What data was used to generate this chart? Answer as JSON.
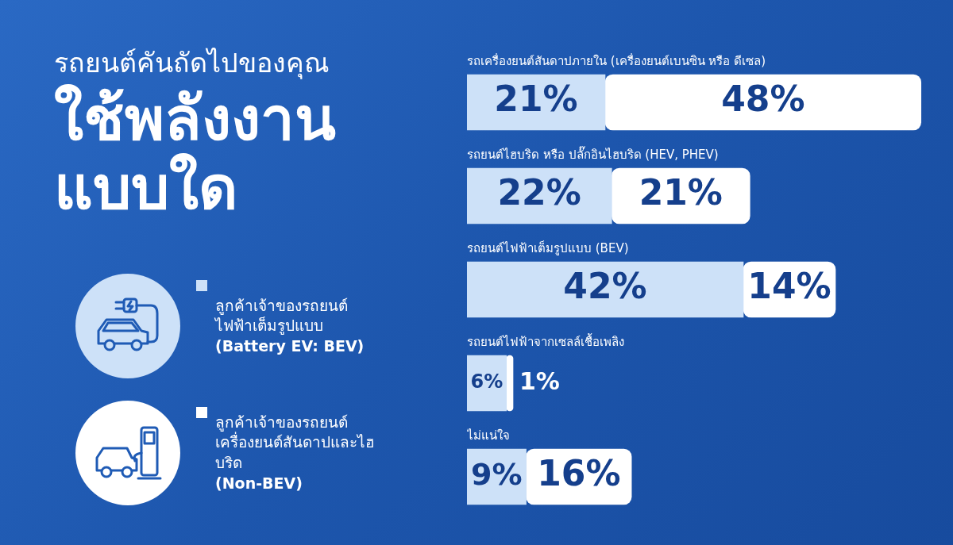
{
  "chart_data": {
    "type": "bar",
    "orientation": "horizontal",
    "stacked": true,
    "title": "รถยนต์คันถัดไปของคุณ",
    "subtitle": "ใช้พลังงานแบบใด",
    "categories": [
      "รถเครื่องยนต์สันดาปภายใน (เครื่องยนต์เบนซิน หรือ ดีเซล)",
      "รถยนต์ไฮบริด หรือ ปลั๊กอินไฮบริด (HEV, PHEV)",
      "รถยนต์ไฟฟ้าเต็มรูปแบบ (BEV)",
      "รถยนต์ไฟฟ้าจากเซลล์เชื้อเพลิง",
      "ไม่แน่ใจ"
    ],
    "series": [
      {
        "name": "ลูกค้าเจ้าของรถยนต์ไฟฟ้าเต็มรูปแบบ (Battery EV: BEV)",
        "color": "#cde1f8",
        "values": [
          21,
          22,
          42,
          6,
          9
        ],
        "value_labels": [
          "21%",
          "22%",
          "42%",
          "6%",
          "9%"
        ]
      },
      {
        "name": "ลูกค้าเจ้าของรถยนต์เครื่องยนต์สันดาปและไฮบริด (Non-BEV)",
        "color": "#ffffff",
        "values": [
          48,
          21,
          14,
          1,
          16
        ],
        "value_labels": [
          "48%",
          "21%",
          "14%",
          "1%",
          "16%"
        ]
      }
    ],
    "legend": "left"
  }
}
